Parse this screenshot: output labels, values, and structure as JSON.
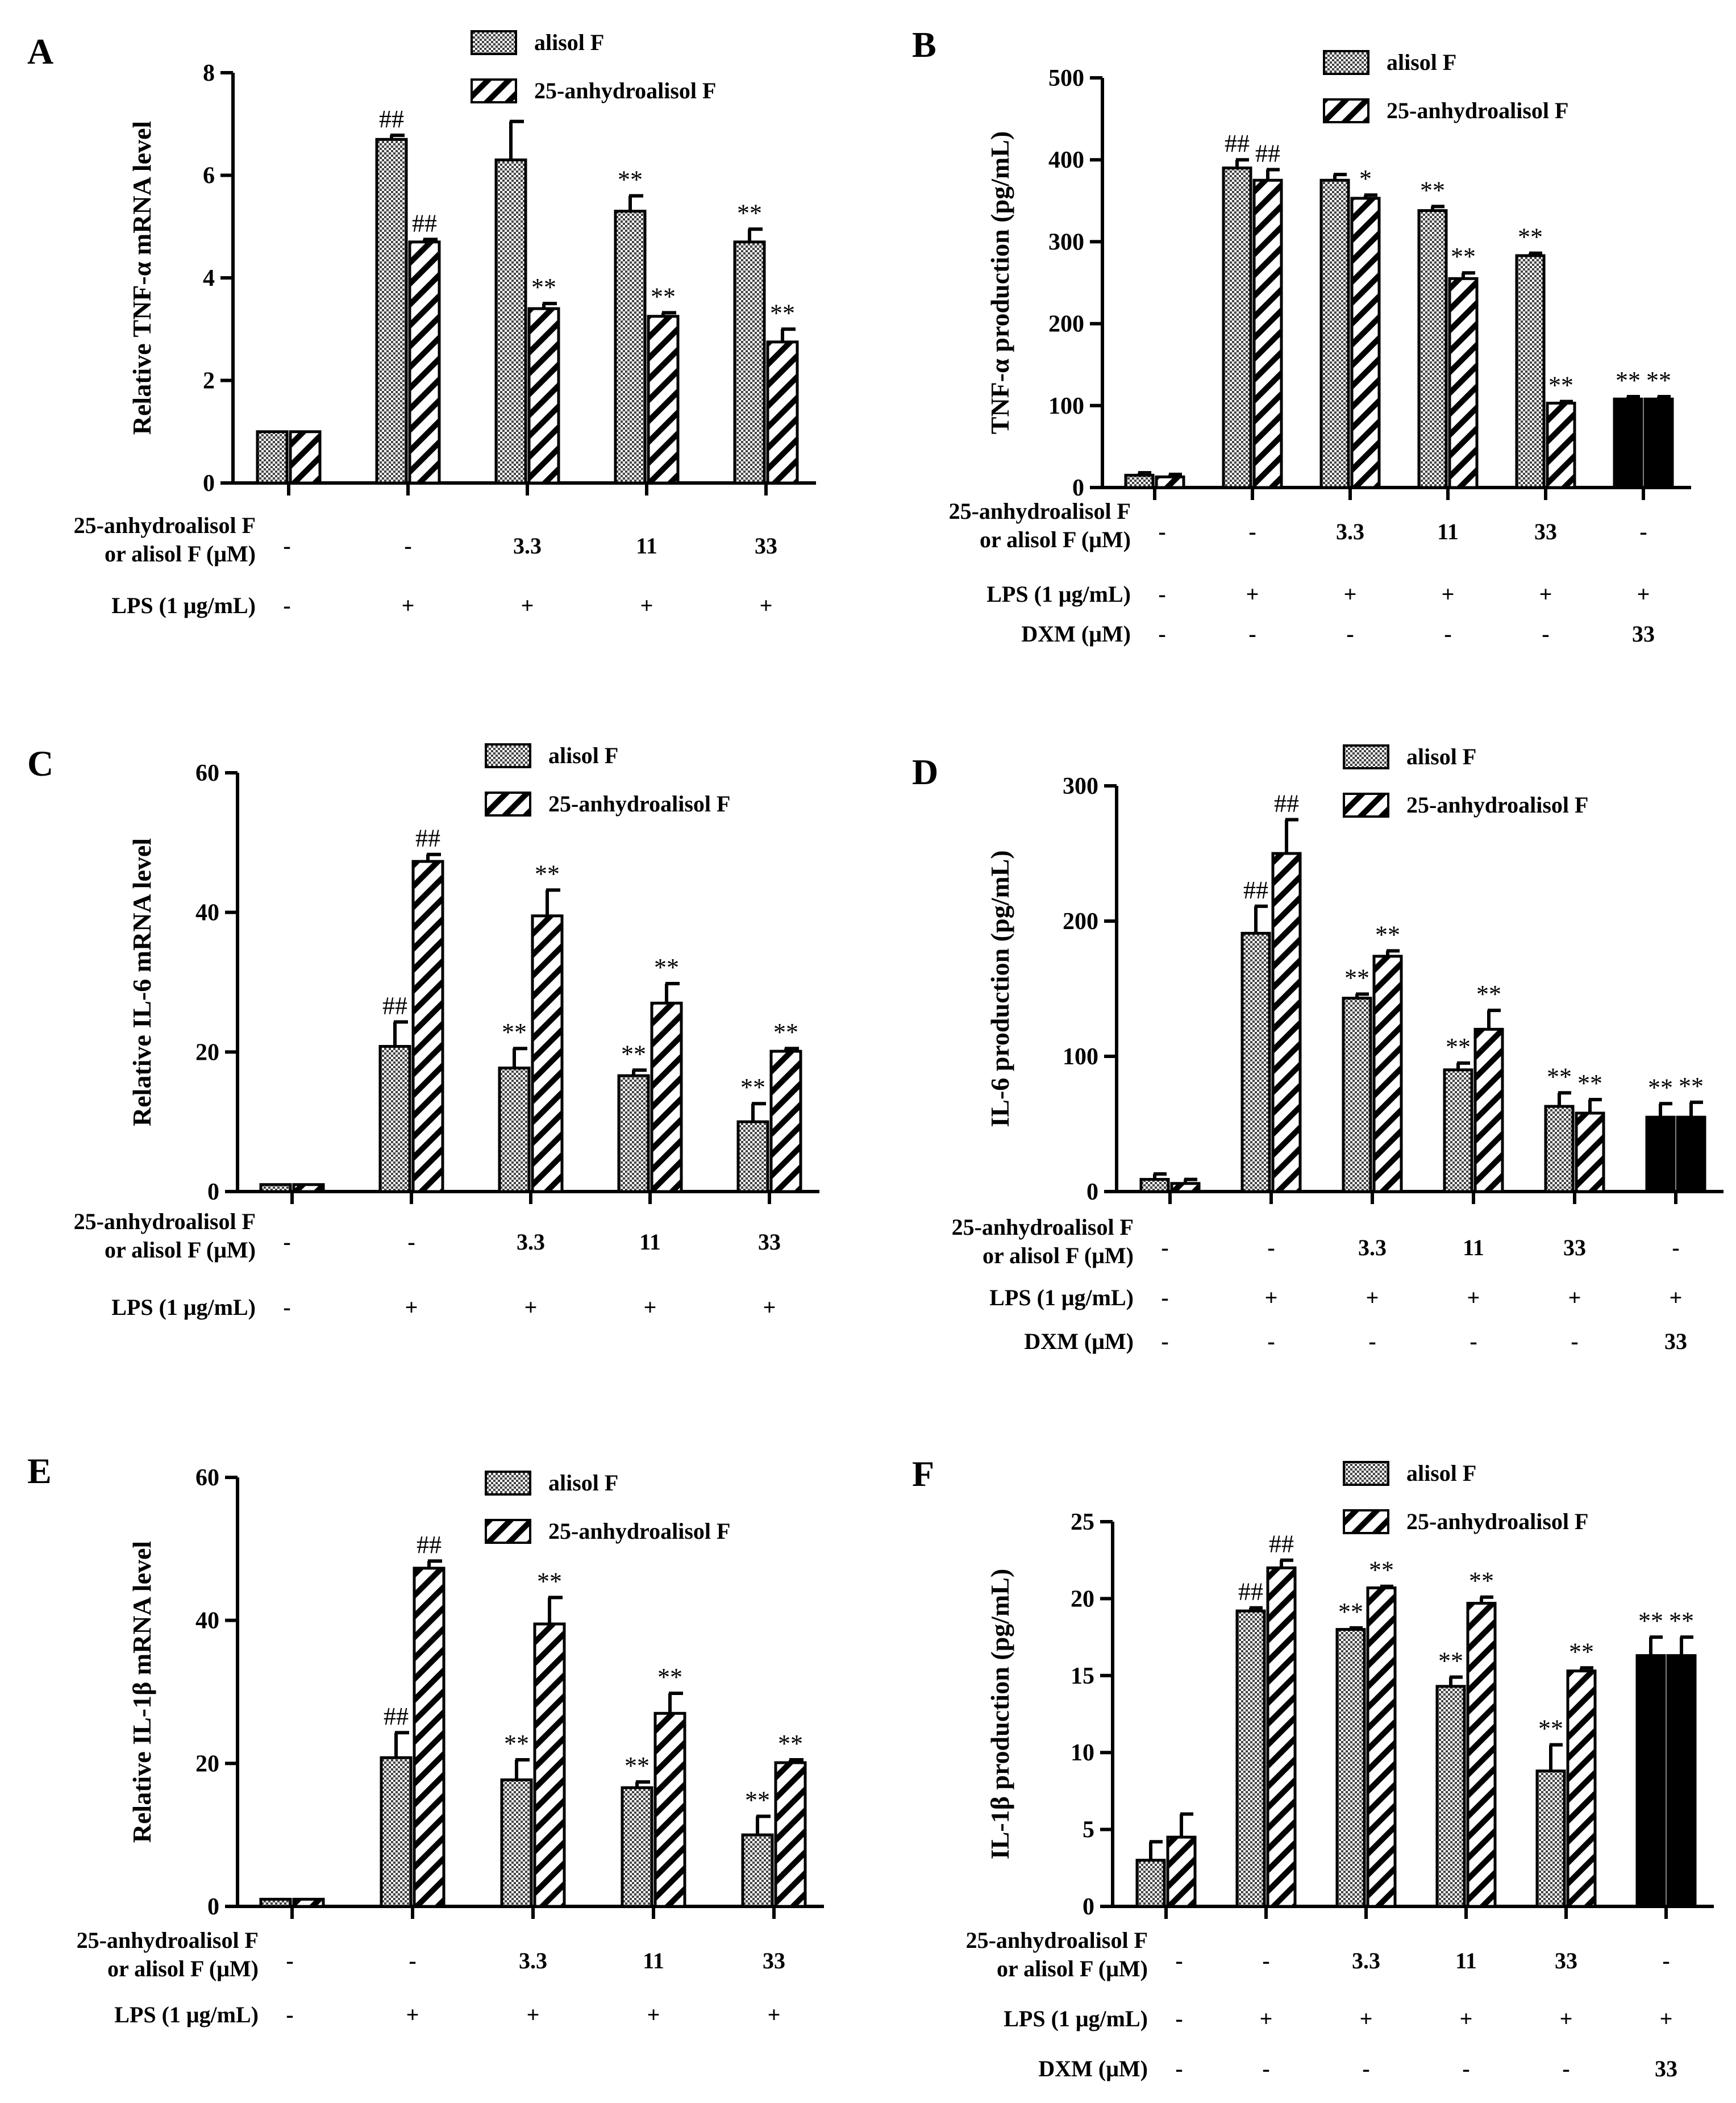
{
  "colors": {
    "ink": "#000000",
    "check": "#8a8a8a",
    "paper": "#ffffff"
  },
  "legend": {
    "alisol": "alisol F",
    "anhydro": "25-anhydroalisol F"
  },
  "row_labels": {
    "dose_line1": "25-anhydroalisol F",
    "dose_line2": "or alisol F (μM)",
    "lps": "LPS (1 μg/mL)",
    "dxm": "DXM (μM)"
  },
  "chart_data": [
    {
      "id": "A",
      "panel": "A",
      "type": "bar",
      "ylabel": "Relative TNF-α mRNA level",
      "ylim": [
        0,
        8
      ],
      "yticks": [
        0,
        2,
        4,
        6,
        8
      ],
      "legend_position": "top-right",
      "dose_row": [
        "-",
        "-",
        "3.3",
        "11",
        "33"
      ],
      "lps_row": [
        "-",
        "+",
        "+",
        "+",
        "+"
      ],
      "series": [
        {
          "name": "alisol F",
          "pattern": "check",
          "values": [
            1,
            6.7,
            6.3,
            5.3,
            4.7
          ],
          "errors": [
            0,
            0.08,
            0.75,
            0.3,
            0.25
          ],
          "sig": [
            "",
            "##",
            "",
            "**",
            "**"
          ]
        },
        {
          "name": "25-anhydroalisol F",
          "pattern": "hatch",
          "values": [
            1,
            4.7,
            3.4,
            3.25,
            2.75
          ],
          "errors": [
            0,
            0.05,
            0.1,
            0.07,
            0.25
          ],
          "sig": [
            "",
            "##",
            "**",
            "**",
            "**"
          ]
        }
      ]
    },
    {
      "id": "B",
      "panel": "B",
      "type": "bar",
      "ylabel": "TNF-α production (pg/mL)",
      "ylim": [
        0,
        500
      ],
      "yticks": [
        0,
        100,
        200,
        300,
        400,
        500
      ],
      "legend_position": "top-right",
      "dose_row": [
        "-",
        "-",
        "3.3",
        "11",
        "33",
        "-"
      ],
      "lps_row": [
        "-",
        "+",
        "+",
        "+",
        "+",
        "+"
      ],
      "dxm_row": [
        "-",
        "-",
        "-",
        "-",
        "-",
        "33"
      ],
      "dxm_group": 5,
      "series": [
        {
          "name": "alisol F",
          "pattern": "check",
          "values": [
            15,
            390,
            375,
            338,
            283,
            108
          ],
          "errors": [
            3,
            10,
            7,
            5,
            3,
            3
          ],
          "sig": [
            "",
            "##",
            "",
            "**",
            "**",
            "**"
          ]
        },
        {
          "name": "25-anhydroalisol F",
          "pattern": "hatch",
          "values": [
            13,
            375,
            353,
            255,
            103,
            108
          ],
          "errors": [
            3,
            13,
            4,
            7,
            2,
            3
          ],
          "sig": [
            "",
            "##",
            "*",
            "**",
            "**",
            "**"
          ]
        }
      ]
    },
    {
      "id": "C",
      "panel": "C",
      "type": "bar",
      "ylabel": "Relative IL-6 mRNA level",
      "ylim": [
        0,
        60
      ],
      "yticks": [
        0,
        20,
        40,
        60
      ],
      "legend_position": "top-right",
      "dose_row": [
        "-",
        "-",
        "3.3",
        "11",
        "33"
      ],
      "lps_row": [
        "-",
        "+",
        "+",
        "+",
        "+"
      ],
      "series": [
        {
          "name": "alisol F",
          "pattern": "check",
          "values": [
            1,
            20.8,
            17.7,
            16.6,
            10.0
          ],
          "errors": [
            0,
            3.5,
            2.8,
            0.8,
            2.6
          ],
          "sig": [
            "",
            "##",
            "**",
            "**",
            "**"
          ]
        },
        {
          "name": "25-anhydroalisol F",
          "pattern": "hatch",
          "values": [
            1,
            47.3,
            39.5,
            27.0,
            20.1
          ],
          "errors": [
            0,
            1.0,
            3.7,
            2.8,
            0.4
          ],
          "sig": [
            "",
            "##",
            "**",
            "**",
            "**"
          ]
        }
      ]
    },
    {
      "id": "D",
      "panel": "D",
      "type": "bar",
      "ylabel": "IL-6 production (pg/mL)",
      "ylim": [
        0,
        300
      ],
      "yticks": [
        0,
        100,
        200,
        300
      ],
      "legend_position": "top-right",
      "dose_row": [
        "-",
        "-",
        "3.3",
        "11",
        "33",
        "-"
      ],
      "lps_row": [
        "-",
        "+",
        "+",
        "+",
        "+",
        "+"
      ],
      "dxm_row": [
        "-",
        "-",
        "-",
        "-",
        "-",
        "33"
      ],
      "dxm_group": 5,
      "series": [
        {
          "name": "alisol F",
          "pattern": "check",
          "values": [
            9,
            191,
            143,
            90,
            63,
            55
          ],
          "errors": [
            4,
            20,
            3,
            5,
            10,
            10
          ],
          "sig": [
            "",
            "##",
            "**",
            "**",
            "**",
            "**"
          ]
        },
        {
          "name": "25-anhydroalisol F",
          "pattern": "hatch",
          "values": [
            6,
            250,
            174,
            120,
            58,
            55
          ],
          "errors": [
            3,
            25,
            4,
            14,
            10,
            11
          ],
          "sig": [
            "",
            "##",
            "**",
            "**",
            "**",
            "**"
          ]
        }
      ]
    },
    {
      "id": "E",
      "panel": "E",
      "type": "bar",
      "ylabel": "Relative IL-1β mRNA level",
      "ylim": [
        0,
        60
      ],
      "yticks": [
        0,
        20,
        40,
        60
      ],
      "legend_position": "top-right",
      "dose_row": [
        "-",
        "-",
        "3.3",
        "11",
        "33"
      ],
      "lps_row": [
        "-",
        "+",
        "+",
        "+",
        "+"
      ],
      "series": [
        {
          "name": "alisol F",
          "pattern": "check",
          "values": [
            1,
            20.8,
            17.7,
            16.6,
            10.0
          ],
          "errors": [
            0,
            3.5,
            2.8,
            0.8,
            2.6
          ],
          "sig": [
            "",
            "##",
            "**",
            "**",
            "**"
          ]
        },
        {
          "name": "25-anhydroalisol F",
          "pattern": "hatch",
          "values": [
            1,
            47.3,
            39.5,
            27.0,
            20.1
          ],
          "errors": [
            0,
            1.0,
            3.7,
            2.8,
            0.4
          ],
          "sig": [
            "",
            "##",
            "**",
            "**",
            "**"
          ]
        }
      ]
    },
    {
      "id": "F",
      "panel": "F",
      "type": "bar",
      "ylabel": "IL-1β production (pg/mL)",
      "ylim": [
        0,
        25
      ],
      "yticks": [
        0,
        5,
        10,
        15,
        20,
        25
      ],
      "legend_position": "top-right",
      "dose_row": [
        "-",
        "-",
        "3.3",
        "11",
        "33",
        "-"
      ],
      "lps_row": [
        "-",
        "+",
        "+",
        "+",
        "+",
        "+"
      ],
      "dxm_row": [
        "-",
        "-",
        "-",
        "-",
        "-",
        "33"
      ],
      "dxm_group": 5,
      "series": [
        {
          "name": "alisol F",
          "pattern": "check",
          "values": [
            3.0,
            19.2,
            18.0,
            14.3,
            8.8,
            16.3
          ],
          "errors": [
            1.2,
            0.2,
            0.1,
            0.6,
            1.7,
            1.2
          ],
          "sig": [
            "",
            "##",
            "**",
            "**",
            "**",
            "**"
          ]
        },
        {
          "name": "25-anhydroalisol F",
          "pattern": "hatch",
          "values": [
            4.5,
            22.0,
            20.7,
            19.7,
            15.3,
            16.3
          ],
          "errors": [
            1.5,
            0.5,
            0.1,
            0.4,
            0.2,
            1.2
          ],
          "sig": [
            "",
            "##",
            "**",
            "**",
            "**",
            "**"
          ]
        }
      ]
    }
  ]
}
